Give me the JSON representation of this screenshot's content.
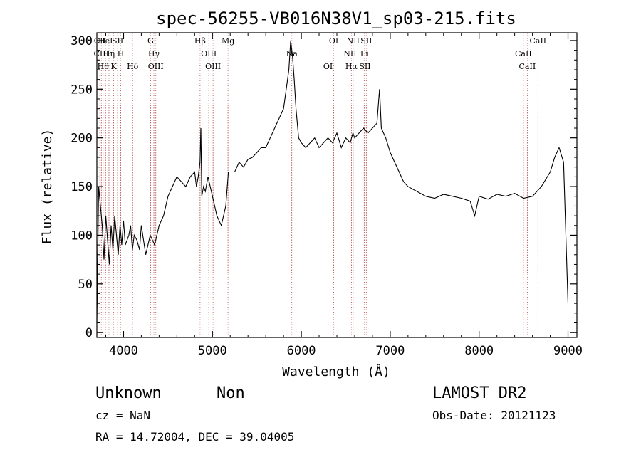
{
  "chart_data": {
    "type": "line",
    "title": "spec-56255-VB016N38V1_sp03-215.fits",
    "xlabel": "Wavelength (Å)",
    "ylabel": "Flux (relative)",
    "xlim": [
      3700,
      9100
    ],
    "ylim": [
      -5,
      308
    ],
    "x_ticks": [
      4000,
      5000,
      6000,
      7000,
      8000,
      9000
    ],
    "y_ticks": [
      0,
      50,
      100,
      150,
      200,
      250,
      300
    ],
    "grid": false,
    "series": [
      {
        "x": [
          3700,
          3720,
          3740,
          3760,
          3780,
          3800,
          3820,
          3840,
          3860,
          3880,
          3900,
          3920,
          3940,
          3960,
          3980,
          4000,
          4020,
          4040,
          4060,
          4080,
          4100,
          4120,
          4150,
          4180,
          4200,
          4250,
          4300,
          4350,
          4400,
          4450,
          4500,
          4550,
          4600,
          4650,
          4700,
          4750,
          4800,
          4820,
          4840,
          4860,
          4870,
          4880,
          4900,
          4920,
          4950,
          5000,
          5050,
          5100,
          5150,
          5180,
          5200,
          5250,
          5300,
          5350,
          5400,
          5450,
          5500,
          5550,
          5600,
          5650,
          5700,
          5750,
          5800,
          5830,
          5860,
          5880,
          5900,
          5920,
          5940,
          5970,
          6000,
          6050,
          6100,
          6150,
          6200,
          6250,
          6300,
          6350,
          6400,
          6450,
          6500,
          6550,
          6580,
          6600,
          6650,
          6700,
          6750,
          6800,
          6850,
          6880,
          6900,
          6950,
          7000,
          7050,
          7100,
          7150,
          7200,
          7300,
          7400,
          7500,
          7600,
          7700,
          7800,
          7900,
          7950,
          8000,
          8100,
          8200,
          8300,
          8400,
          8500,
          8600,
          8700,
          8800,
          8850,
          8900,
          8950,
          9000
        ],
        "y": [
          10,
          150,
          130,
          110,
          75,
          120,
          95,
          70,
          110,
          85,
          120,
          100,
          80,
          110,
          90,
          115,
          90,
          95,
          100,
          110,
          85,
          100,
          95,
          85,
          110,
          80,
          100,
          90,
          110,
          120,
          140,
          150,
          160,
          155,
          150,
          160,
          165,
          150,
          160,
          175,
          210,
          140,
          150,
          145,
          160,
          140,
          120,
          110,
          130,
          165,
          165,
          165,
          175,
          170,
          178,
          180,
          185,
          190,
          190,
          200,
          210,
          220,
          230,
          250,
          270,
          300,
          285,
          260,
          230,
          200,
          195,
          190,
          195,
          200,
          190,
          195,
          200,
          195,
          205,
          190,
          200,
          195,
          205,
          200,
          205,
          210,
          205,
          210,
          215,
          250,
          210,
          200,
          185,
          175,
          165,
          155,
          150,
          145,
          140,
          138,
          142,
          140,
          138,
          135,
          120,
          140,
          137,
          142,
          140,
          143,
          138,
          140,
          150,
          165,
          180,
          190,
          175,
          30
        ]
      }
    ],
    "lines": [
      {
        "x": 3734,
        "label": "CII"
      },
      {
        "x": 3750,
        "label": "CIII"
      },
      {
        "x": 3770,
        "label": "Hθ"
      },
      {
        "x": 3798,
        "label": "HeI"
      },
      {
        "x": 3836,
        "label": "Hη"
      },
      {
        "x": 3889,
        "label": "K"
      },
      {
        "x": 3933,
        "label": "SII"
      },
      {
        "x": 3969,
        "label": "H"
      },
      {
        "x": 4102,
        "label": "Hδ"
      },
      {
        "x": 4304,
        "label": "G"
      },
      {
        "x": 4341,
        "label": "Hγ"
      },
      {
        "x": 4363,
        "label": "OIII"
      },
      {
        "x": 4861,
        "label": "Hβ"
      },
      {
        "x": 4959,
        "label": "OIII"
      },
      {
        "x": 5007,
        "label": "OIII"
      },
      {
        "x": 5175,
        "label": "Mg"
      },
      {
        "x": 5893,
        "label": "Na"
      },
      {
        "x": 6300,
        "label": "OI"
      },
      {
        "x": 6364,
        "label": "OI"
      },
      {
        "x": 6548,
        "label": "NII"
      },
      {
        "x": 6563,
        "label": "Hα"
      },
      {
        "x": 6583,
        "label": "NII"
      },
      {
        "x": 6707,
        "label": "Li"
      },
      {
        "x": 6716,
        "label": "SII"
      },
      {
        "x": 6731,
        "label": "SII"
      },
      {
        "x": 8498,
        "label": "CaII"
      },
      {
        "x": 8542,
        "label": "CaII"
      },
      {
        "x": 8662,
        "label": "CaII"
      }
    ]
  },
  "footer": {
    "class_label": "Unknown",
    "subclass_label": "Non",
    "survey": "LAMOST DR2",
    "cz": "cz = NaN",
    "obs_date": "Obs-Date: 20121123",
    "coords": "RA =  14.72004, DEC =  39.04005"
  },
  "colors": {
    "line_markers": "#b04040",
    "spectrum": "#000000"
  }
}
